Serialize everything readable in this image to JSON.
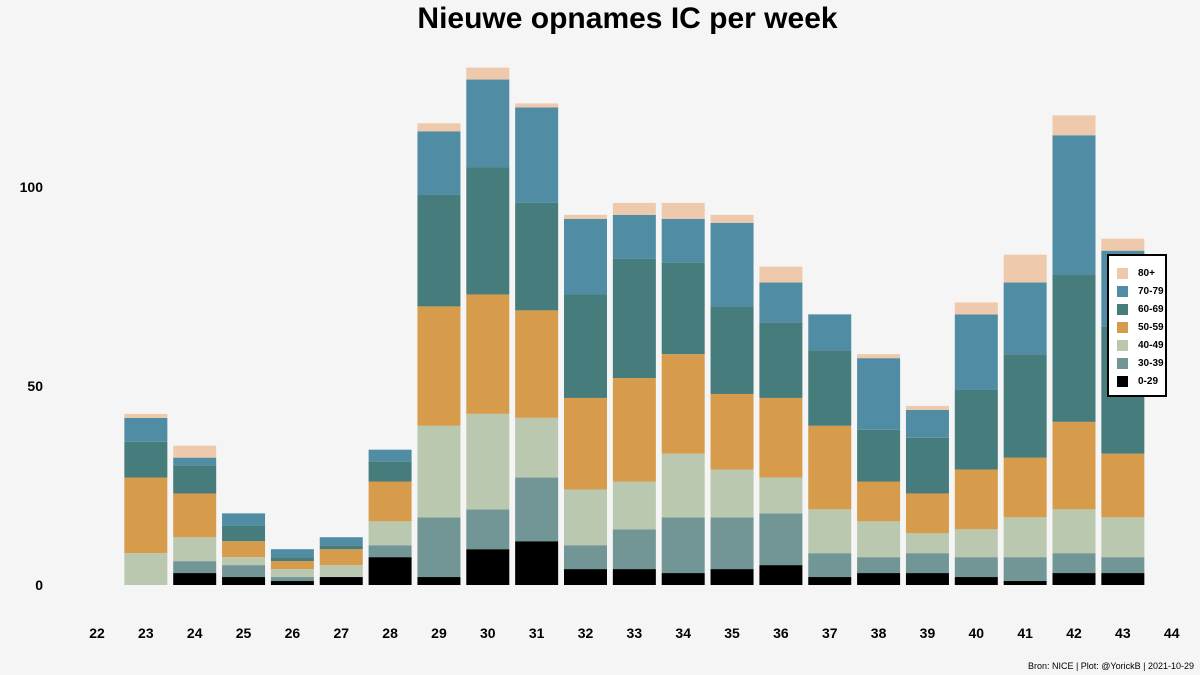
{
  "chart_data": {
    "type": "bar",
    "stacked": true,
    "title": "Nieuwe opnames IC per week",
    "xlabel": "",
    "ylabel": "",
    "caption": "Bron: NICE | Plot: @YorickB |  2021-10-29",
    "x_ticks": [
      "22",
      "23",
      "24",
      "25",
      "26",
      "27",
      "28",
      "29",
      "30",
      "31",
      "32",
      "33",
      "34",
      "35",
      "36",
      "37",
      "38",
      "39",
      "40",
      "41",
      "42",
      "43",
      "44"
    ],
    "categories": [
      "23",
      "24",
      "25",
      "26",
      "27",
      "28",
      "29",
      "30",
      "31",
      "32",
      "33",
      "34",
      "35",
      "36",
      "37",
      "38",
      "39",
      "40",
      "41",
      "42",
      "43"
    ],
    "y_ticks": [
      0,
      50,
      100
    ],
    "ylim": [
      0,
      130
    ],
    "grid": false,
    "legend_position": "right",
    "series": [
      {
        "name": "0-29",
        "color": "#000000",
        "values": [
          0,
          3,
          2,
          1,
          2,
          7,
          2,
          9,
          11,
          4,
          4,
          3,
          4,
          5,
          2,
          3,
          3,
          2,
          1,
          3,
          3
        ]
      },
      {
        "name": "30-39",
        "color": "#729696",
        "values": [
          0,
          3,
          3,
          1,
          0,
          3,
          15,
          10,
          16,
          6,
          10,
          14,
          13,
          13,
          6,
          4,
          5,
          5,
          6,
          5,
          4
        ]
      },
      {
        "name": "40-49",
        "color": "#bac8b0",
        "values": [
          8,
          6,
          2,
          2,
          3,
          6,
          23,
          24,
          15,
          14,
          12,
          16,
          12,
          9,
          11,
          9,
          5,
          7,
          10,
          11,
          10
        ]
      },
      {
        "name": "50-59",
        "color": "#d69c4c",
        "values": [
          19,
          11,
          4,
          2,
          4,
          10,
          30,
          30,
          27,
          23,
          26,
          25,
          19,
          20,
          21,
          10,
          10,
          15,
          15,
          22,
          16
        ]
      },
      {
        "name": "60-69",
        "color": "#477c7d",
        "values": [
          9,
          7,
          4,
          1,
          1,
          5,
          28,
          32,
          27,
          26,
          30,
          23,
          22,
          19,
          19,
          13,
          14,
          20,
          26,
          37,
          32
        ]
      },
      {
        "name": "70-79",
        "color": "#508da5",
        "values": [
          6,
          2,
          3,
          2,
          2,
          3,
          16,
          22,
          24,
          19,
          11,
          11,
          21,
          10,
          9,
          18,
          7,
          19,
          18,
          35,
          19
        ]
      },
      {
        "name": "80+",
        "color": "#efc9ab",
        "values": [
          1,
          3,
          0,
          0,
          0,
          0,
          2,
          3,
          1,
          1,
          3,
          4,
          2,
          4,
          0,
          1,
          1,
          3,
          7,
          5,
          3
        ]
      }
    ],
    "legend_order": [
      "80+",
      "70-79",
      "60-69",
      "50-59",
      "40-49",
      "30-39",
      "0-29"
    ]
  }
}
